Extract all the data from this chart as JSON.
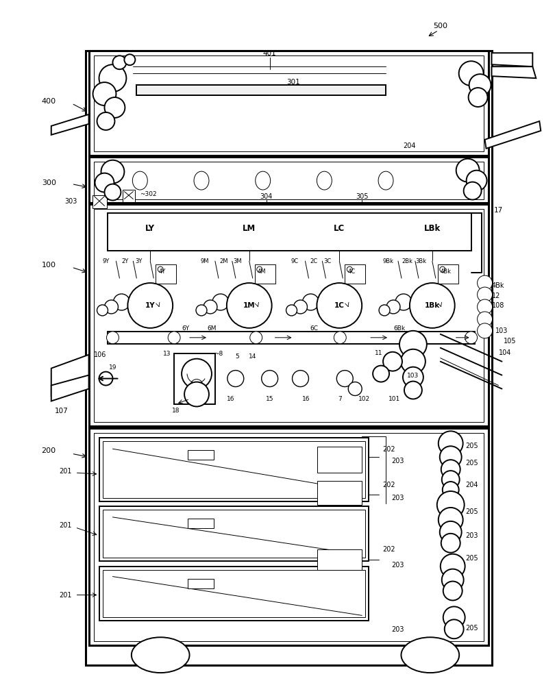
{
  "bg_color": "#ffffff",
  "fig_width": 7.93,
  "fig_height": 10.0,
  "dpi": 100
}
